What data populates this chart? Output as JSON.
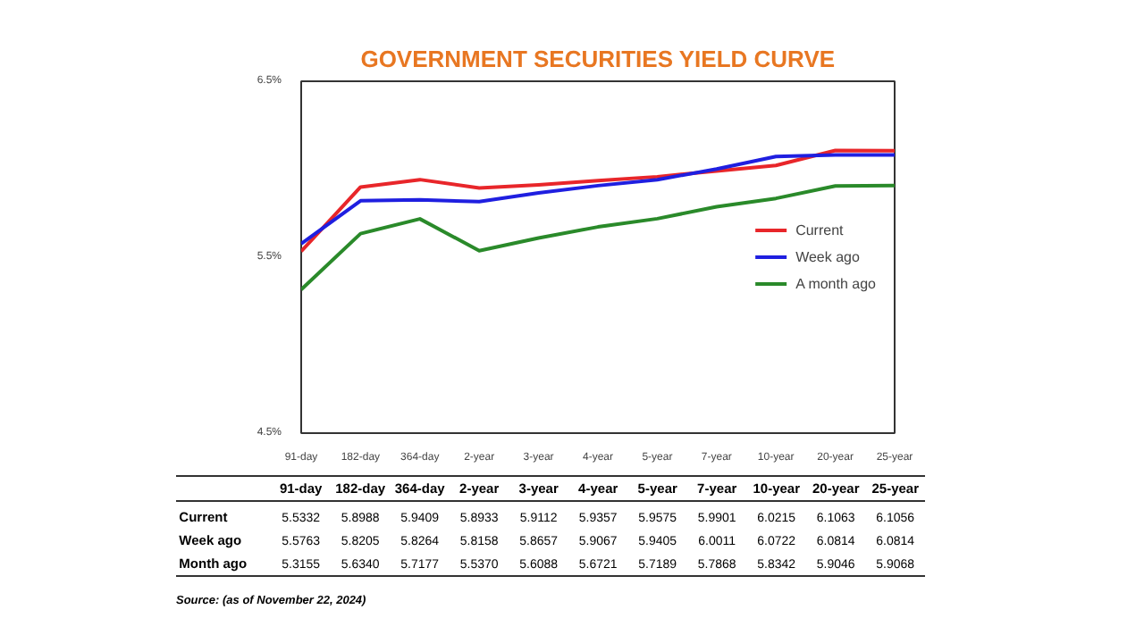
{
  "chart_data": {
    "type": "line",
    "title": "GOVERNMENT SECURITIES YIELD CURVE",
    "categories": [
      "91-day",
      "182-day",
      "364-day",
      "2-year",
      "3-year",
      "4-year",
      "5-year",
      "7-year",
      "10-year",
      "20-year",
      "25-year"
    ],
    "series": [
      {
        "name": "Current",
        "color": "#e8262a",
        "values": [
          5.5332,
          5.8988,
          5.9409,
          5.8933,
          5.9112,
          5.9357,
          5.9575,
          5.9901,
          6.0215,
          6.1063,
          6.1056
        ],
        "value_labels": [
          "5.5332",
          "5.8988",
          "5.9409",
          "5.8933",
          "5.9112",
          "5.9357",
          "5.9575",
          "5.9901",
          "6.0215",
          "6.1063",
          "6.1056"
        ]
      },
      {
        "name": "Week ago",
        "color": "#1f1fe0",
        "values": [
          5.5763,
          5.8205,
          5.8264,
          5.8158,
          5.8657,
          5.9067,
          5.9405,
          6.0011,
          6.0722,
          6.0814,
          6.0814
        ],
        "value_labels": [
          "5.5763",
          "5.8205",
          "5.8264",
          "5.8158",
          "5.8657",
          "5.9067",
          "5.9405",
          "6.0011",
          "6.0722",
          "6.0814",
          "6.0814"
        ]
      },
      {
        "name": "A month ago",
        "color": "#2a8a2a",
        "values": [
          5.3155,
          5.634,
          5.7177,
          5.537,
          5.6088,
          5.6721,
          5.7189,
          5.7868,
          5.8342,
          5.9046,
          5.9068
        ],
        "value_labels": [
          "5.3155",
          "5.6340",
          "5.7177",
          "5.5370",
          "5.6088",
          "5.6721",
          "5.7189",
          "5.7868",
          "5.8342",
          "5.9046",
          "5.9068"
        ]
      }
    ],
    "ylim": [
      4.5,
      6.5
    ],
    "yticks": [
      {
        "value": 4.5,
        "label": "4.5%"
      },
      {
        "value": 5.5,
        "label": "5.5%"
      },
      {
        "value": 6.5,
        "label": "6.5%"
      }
    ],
    "grid": false,
    "legend": "right",
    "marker": "none",
    "line_style": "solid",
    "annotations": [
      "Current",
      "Week ago",
      "Month ago",
      "Source: (as of November 22, 2024)"
    ]
  }
}
